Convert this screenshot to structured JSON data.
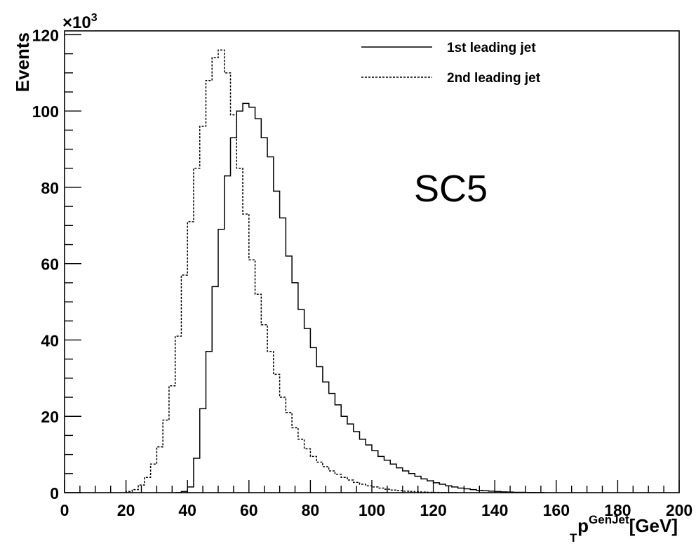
{
  "chart_data": {
    "type": "histogram-step",
    "xlabel": {
      "main": "p",
      "sub": "T",
      "sup": "GenJet",
      "unit": "[GeV]"
    },
    "ylabel": "Events",
    "y_multiplier": {
      "prefix": "×10",
      "exponent": "3"
    },
    "xlim": [
      0,
      200
    ],
    "ylim": [
      0,
      121
    ],
    "x_ticks": [
      0,
      20,
      40,
      60,
      80,
      100,
      120,
      140,
      160,
      180,
      200
    ],
    "y_ticks": [
      0,
      20,
      40,
      60,
      80,
      100,
      120
    ],
    "bin_width": 2,
    "annotation": "SC5",
    "legend_position": "top-right",
    "series": [
      {
        "name": "1st leading jet",
        "line_style": "solid",
        "bin_start": 36,
        "values": [
          0,
          0.3,
          1.5,
          9,
          22,
          37,
          54,
          69,
          83,
          93,
          100,
          102,
          101,
          98,
          93,
          88,
          79,
          72,
          62,
          55,
          48,
          43,
          38,
          33,
          29,
          26,
          23,
          20,
          18,
          16,
          14,
          12.5,
          11,
          9.5,
          8.5,
          7.5,
          6.5,
          5.7,
          5,
          4.3,
          3.6,
          3.1,
          2.6,
          2.2,
          1.8,
          1.5,
          1.2,
          1.0,
          0.8,
          0.6,
          0.5,
          0.4,
          0.3,
          0.2,
          0.15,
          0.1,
          0.08,
          0.05,
          0.03,
          0.02
        ]
      },
      {
        "name": "2nd leading jet",
        "line_style": "dashed",
        "bin_start": 20,
        "values": [
          0.3,
          0.8,
          2,
          4,
          7.5,
          12,
          19,
          28,
          41,
          57,
          71,
          85,
          96,
          108,
          114,
          116,
          110,
          99,
          85,
          73,
          61,
          52,
          44,
          37,
          31,
          25,
          21,
          17,
          14,
          11.5,
          9.5,
          8,
          6.8,
          5.7,
          4.8,
          4,
          3.3,
          2.7,
          2.2,
          1.8,
          1.5,
          1.2,
          0.9,
          0.7,
          0.55,
          0.4,
          0.3,
          0.2,
          0.15,
          0.1,
          0.07,
          0.05,
          0.03,
          0.02
        ]
      }
    ]
  }
}
